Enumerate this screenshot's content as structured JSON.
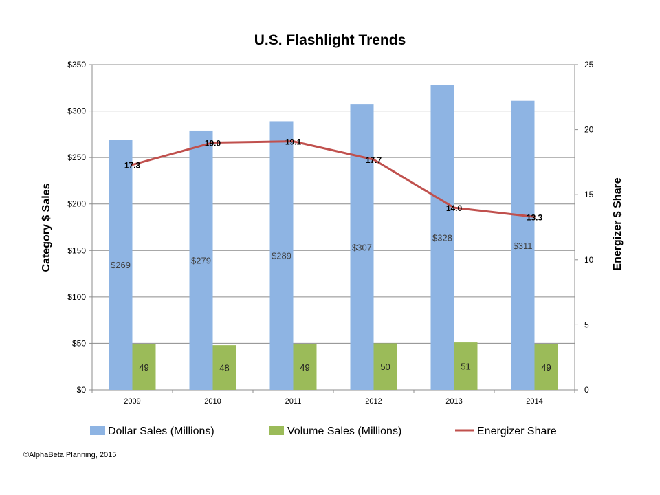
{
  "chart_data": {
    "type": "bar",
    "title": "U.S. Flashlight Trends",
    "xlabel": "",
    "ylabel": "Category $ Sales",
    "y2label": "Energizer $ Share",
    "categories": [
      "2009",
      "2010",
      "2011",
      "2012",
      "2013",
      "2014"
    ],
    "ylim": [
      0,
      350
    ],
    "y_ticks": [
      0,
      50,
      100,
      150,
      200,
      250,
      300,
      350
    ],
    "y_tick_labels": [
      "$0",
      "$50",
      "$100",
      "$150",
      "$200",
      "$250",
      "$300",
      "$350"
    ],
    "y2lim": [
      0,
      25
    ],
    "y2_ticks": [
      0,
      5,
      10,
      15,
      20,
      25
    ],
    "y2_tick_labels": [
      "0",
      "5",
      "10",
      "15",
      "20",
      "25"
    ],
    "grid": true,
    "legend_position": "bottom",
    "series": [
      {
        "name": "Dollar Sales (Millions)",
        "type": "bar",
        "axis": "left",
        "color": "#8EB4E3",
        "values": [
          269,
          279,
          289,
          307,
          328,
          311
        ],
        "labels": [
          "$269",
          "$279",
          "$289",
          "$307",
          "$328",
          "$311"
        ]
      },
      {
        "name": "Volume Sales (Millions)",
        "type": "bar",
        "axis": "left",
        "color": "#9BBB59",
        "values": [
          49,
          48,
          49,
          50,
          51,
          49
        ],
        "labels": [
          "49",
          "48",
          "49",
          "50",
          "51",
          "49"
        ]
      },
      {
        "name": "Energizer Share",
        "type": "line",
        "axis": "right",
        "color": "#C0504D",
        "values": [
          17.3,
          19.0,
          19.1,
          17.7,
          14.0,
          13.3
        ],
        "labels": [
          "17.3",
          "19.0",
          "19.1",
          "17.7",
          "14.0",
          "13.3"
        ]
      }
    ]
  },
  "footer": "©AlphaBeta Planning, 2015"
}
